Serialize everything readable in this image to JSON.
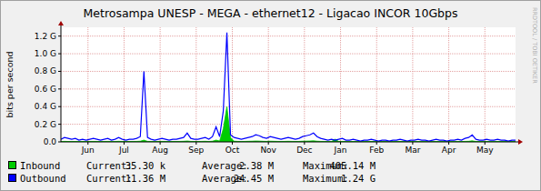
{
  "chart_data": {
    "type": "area",
    "title": "Metrosampa UNESP - MEGA - ethernet12 - Ligacao INCOR 10Gbps",
    "y_label": "bits per second",
    "watermark": "RRDTOOL / TOBI OETIKER",
    "stat_labels": [
      "Current:",
      "Average:",
      "Maximum:"
    ],
    "grid": true,
    "xlim": [
      0,
      12.6
    ],
    "xticks": [
      {
        "value": 0.75,
        "label": "Jun"
      },
      {
        "value": 1.75,
        "label": "Jul"
      },
      {
        "value": 2.75,
        "label": "Aug"
      },
      {
        "value": 3.75,
        "label": "Sep"
      },
      {
        "value": 4.75,
        "label": "Oct"
      },
      {
        "value": 5.75,
        "label": "Nov"
      },
      {
        "value": 6.75,
        "label": "Dec"
      },
      {
        "value": 7.75,
        "label": "Jan"
      },
      {
        "value": 8.75,
        "label": "Feb"
      },
      {
        "value": 9.75,
        "label": "Mar"
      },
      {
        "value": 10.75,
        "label": "Apr"
      },
      {
        "value": 11.75,
        "label": "May"
      }
    ],
    "ylim": [
      0,
      1.3
    ],
    "yticks": [
      {
        "value": 0,
        "label": "0.0"
      },
      {
        "value": 0.2,
        "label": "0.2 G"
      },
      {
        "value": 0.4,
        "label": "0.4 G"
      },
      {
        "value": 0.6,
        "label": "0.6 G"
      },
      {
        "value": 0.8,
        "label": "0.8 G"
      },
      {
        "value": 1.0,
        "label": "1.0 G"
      },
      {
        "value": 1.2,
        "label": "1.2 G"
      }
    ],
    "x": [
      0,
      0.1,
      0.2,
      0.3,
      0.4,
      0.5,
      0.6,
      0.7,
      0.8,
      0.9,
      1,
      1.1,
      1.2,
      1.3,
      1.4,
      1.5,
      1.6,
      1.7,
      1.8,
      1.9,
      2,
      2.1,
      2.2,
      2.3,
      2.4,
      2.5,
      2.6,
      2.7,
      2.8,
      2.9,
      3,
      3.1,
      3.2,
      3.3,
      3.4,
      3.5,
      3.6,
      3.7,
      3.8,
      3.9,
      4,
      4.1,
      4.2,
      4.3,
      4.4,
      4.5,
      4.6,
      4.7,
      4.8,
      4.9,
      5,
      5.1,
      5.2,
      5.3,
      5.4,
      5.5,
      5.6,
      5.7,
      5.8,
      5.9,
      6,
      6.1,
      6.2,
      6.3,
      6.4,
      6.5,
      6.6,
      6.7,
      6.8,
      6.9,
      7,
      7.1,
      7.2,
      7.3,
      7.4,
      7.5,
      7.6,
      7.7,
      7.8,
      7.9,
      8,
      8.1,
      8.2,
      8.3,
      8.4,
      8.5,
      8.6,
      8.7,
      8.8,
      8.9,
      9,
      9.1,
      9.2,
      9.3,
      9.4,
      9.5,
      9.6,
      9.7,
      9.8,
      9.9,
      10,
      10.1,
      10.2,
      10.3,
      10.4,
      10.5,
      10.6,
      10.7,
      10.8,
      10.9,
      11,
      11.1,
      11.2,
      11.3,
      11.4,
      11.5,
      11.6,
      11.7,
      11.8,
      11.9,
      12,
      12.1,
      12.2,
      12.3,
      12.4,
      12.5,
      12.6
    ],
    "series": [
      {
        "name": "Inbound",
        "type": "area",
        "color": "#00cc00",
        "current": "35.30 k",
        "average": "2.38 M",
        "maximum": "405.14 M",
        "values": [
          0.005,
          0.006,
          0.005,
          0.004,
          0.005,
          0.004,
          0.005,
          0.004,
          0.005,
          0.006,
          0.005,
          0.004,
          0.005,
          0.006,
          0.004,
          0.005,
          0.007,
          0.005,
          0.004,
          0.005,
          0.005,
          0.006,
          0.008,
          0.02,
          0.006,
          0.005,
          0.004,
          0.005,
          0.006,
          0.005,
          0.004,
          0.005,
          0.005,
          0.006,
          0.007,
          0.01,
          0.006,
          0.005,
          0.005,
          0.006,
          0.007,
          0.005,
          0.008,
          0.02,
          0.01,
          0.15,
          0.4,
          0.05,
          0.008,
          0.006,
          0.005,
          0.006,
          0.007,
          0.008,
          0.01,
          0.009,
          0.007,
          0.006,
          0.008,
          0.007,
          0.006,
          0.005,
          0.006,
          0.007,
          0.006,
          0.005,
          0.006,
          0.008,
          0.009,
          0.01,
          0.012,
          0.008,
          0.006,
          0.005,
          0.004,
          0.005,
          0.03,
          0.005,
          0.006,
          0.004,
          0.004,
          0.005,
          0.004,
          0.003,
          0.004,
          0.004,
          0.005,
          0.004,
          0.003,
          0.004,
          0.004,
          0.003,
          0.004,
          0.004,
          0.005,
          0.004,
          0.003,
          0.004,
          0.004,
          0.005,
          0.004,
          0.004,
          0.003,
          0.004,
          0.005,
          0.004,
          0.004,
          0.003,
          0.004,
          0.004,
          0.005,
          0.004,
          0.006,
          0.007,
          0.012,
          0.005,
          0.004,
          0.004,
          0.005,
          0.004,
          0.004,
          0.005,
          0.004,
          0.004,
          0.003,
          0.004,
          0.004
        ]
      },
      {
        "name": "Outbound",
        "type": "line",
        "color": "#0000ff",
        "current": "11.36 M",
        "average": "24.45 M",
        "maximum": "1.24 G",
        "values": [
          0.03,
          0.05,
          0.04,
          0.03,
          0.04,
          0.02,
          0.03,
          0.02,
          0.03,
          0.04,
          0.03,
          0.02,
          0.03,
          0.04,
          0.02,
          0.03,
          0.05,
          0.03,
          0.02,
          0.03,
          0.03,
          0.04,
          0.06,
          0.8,
          0.05,
          0.03,
          0.02,
          0.03,
          0.04,
          0.03,
          0.02,
          0.03,
          0.03,
          0.04,
          0.05,
          0.1,
          0.04,
          0.03,
          0.03,
          0.04,
          0.05,
          0.03,
          0.06,
          0.17,
          0.06,
          0.35,
          1.24,
          0.08,
          0.05,
          0.04,
          0.03,
          0.04,
          0.05,
          0.06,
          0.08,
          0.07,
          0.05,
          0.04,
          0.06,
          0.05,
          0.04,
          0.03,
          0.04,
          0.05,
          0.04,
          0.03,
          0.04,
          0.06,
          0.07,
          0.08,
          0.1,
          0.06,
          0.04,
          0.03,
          0.02,
          0.03,
          0.02,
          0.03,
          0.04,
          0.02,
          0.02,
          0.03,
          0.02,
          0.01,
          0.02,
          0.02,
          0.03,
          0.02,
          0.01,
          0.02,
          0.02,
          0.01,
          0.02,
          0.02,
          0.03,
          0.02,
          0.01,
          0.02,
          0.02,
          0.03,
          0.02,
          0.02,
          0.01,
          0.02,
          0.03,
          0.02,
          0.02,
          0.01,
          0.02,
          0.02,
          0.03,
          0.02,
          0.04,
          0.05,
          0.08,
          0.03,
          0.02,
          0.02,
          0.03,
          0.02,
          0.02,
          0.03,
          0.02,
          0.02,
          0.01,
          0.02,
          0.02
        ]
      }
    ]
  }
}
